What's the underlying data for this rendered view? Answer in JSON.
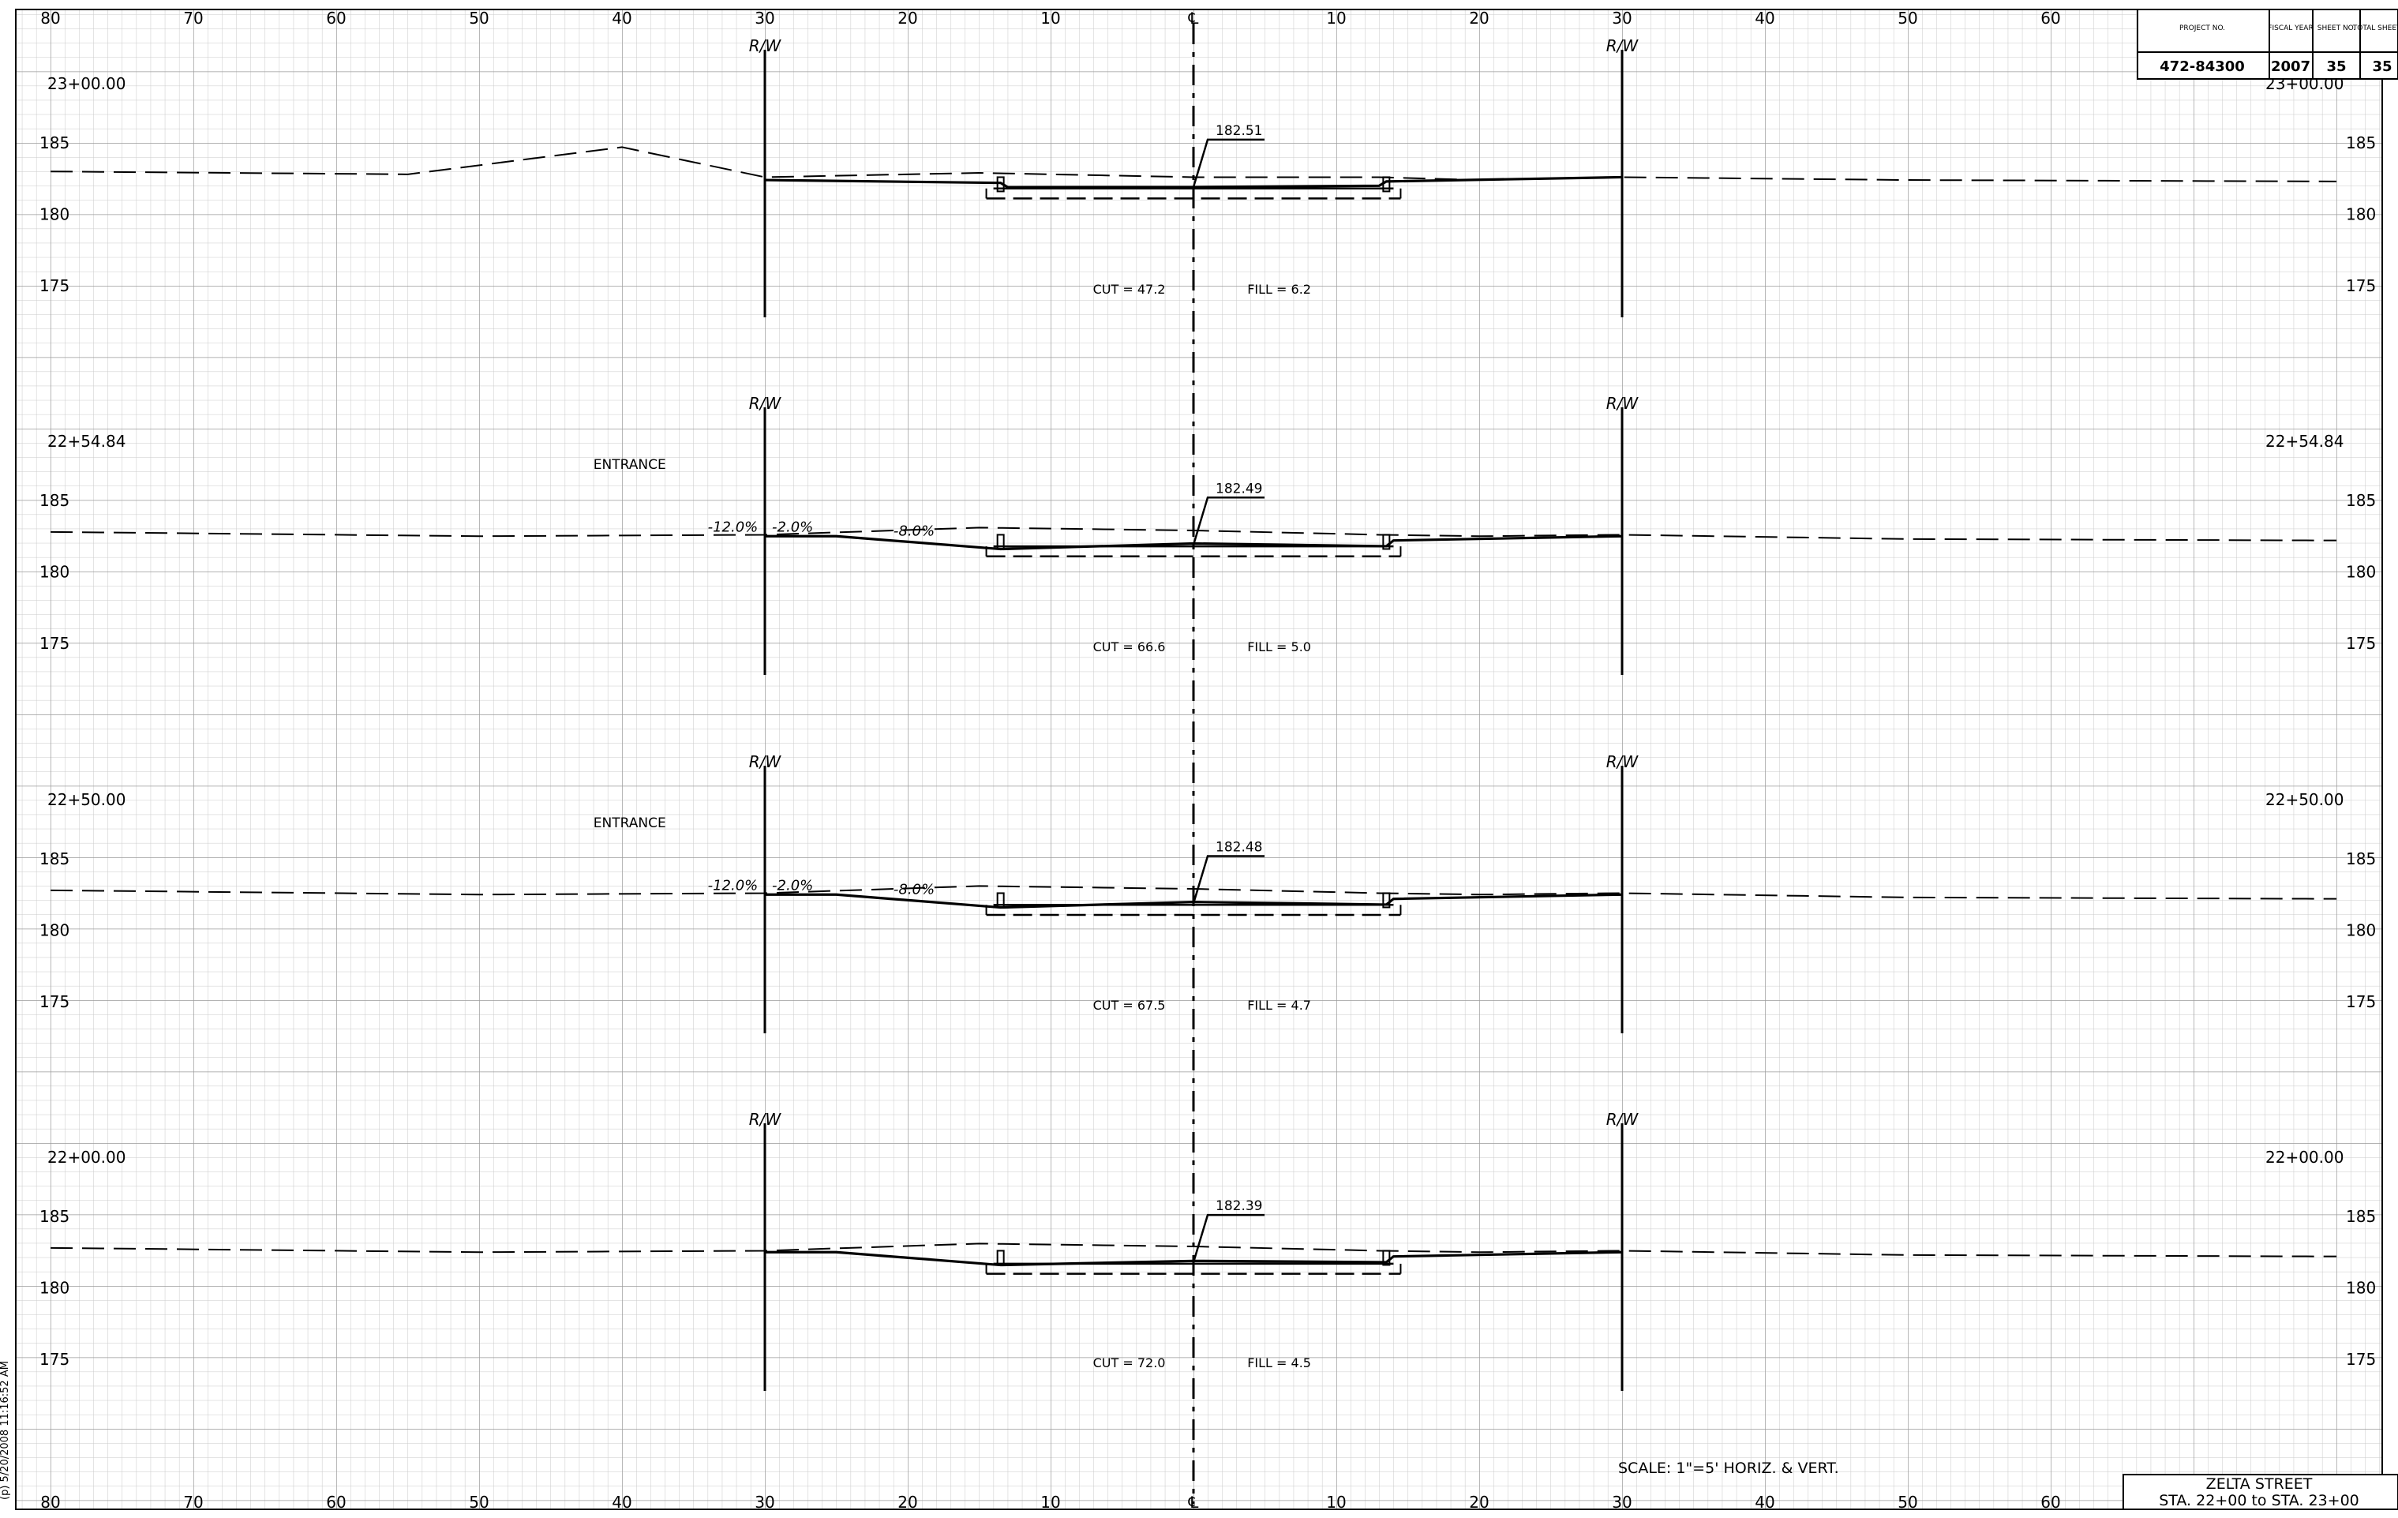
{
  "sheet": {
    "offset_ticks": [
      "80",
      "70",
      "60",
      "50",
      "40",
      "30",
      "20",
      "10",
      "℄",
      "10",
      "20",
      "30",
      "40",
      "50",
      "60",
      "70",
      "80"
    ],
    "centerline_symbol": "℄",
    "rw_label": "R/W",
    "scale_note": "SCALE: 1\"=5' HORIZ. & VERT.",
    "title_line1": "ZELTA STREET",
    "title_line2": "STA. 22+00 to STA. 23+00",
    "side_text": "(p) 5/20/2008 11:16:52 AM"
  },
  "title_block": {
    "headers": [
      "PROJECT NO.",
      "FISCAL YEAR",
      "SHEET NO.",
      "TOTAL SHEETS"
    ],
    "values": [
      "472-84300",
      "2007",
      "35",
      "35"
    ]
  },
  "sections": [
    {
      "station": "23+00.00",
      "elev_labels": [
        "185",
        "180",
        "175"
      ],
      "cl_elev": "182.51",
      "cut": "CUT = 47.2",
      "fill": "FILL = 6.2",
      "note": "",
      "slopes": []
    },
    {
      "station": "22+54.84",
      "elev_labels": [
        "185",
        "180",
        "175"
      ],
      "cl_elev": "182.49",
      "cut": "CUT = 66.6",
      "fill": "FILL = 5.0",
      "note": "ENTRANCE",
      "slopes": [
        "-12.0%",
        "-2.0%",
        "-8.0%"
      ]
    },
    {
      "station": "22+50.00",
      "elev_labels": [
        "185",
        "180",
        "175"
      ],
      "cl_elev": "182.48",
      "cut": "CUT = 67.5",
      "fill": "FILL = 4.7",
      "note": "ENTRANCE",
      "slopes": [
        "-12.0%",
        "-2.0%",
        "-8.0%"
      ]
    },
    {
      "station": "22+00.00",
      "elev_labels": [
        "185",
        "180",
        "175"
      ],
      "cl_elev": "182.39",
      "cut": "CUT = 72.0",
      "fill": "FILL = 4.5",
      "note": "",
      "slopes": []
    }
  ]
}
